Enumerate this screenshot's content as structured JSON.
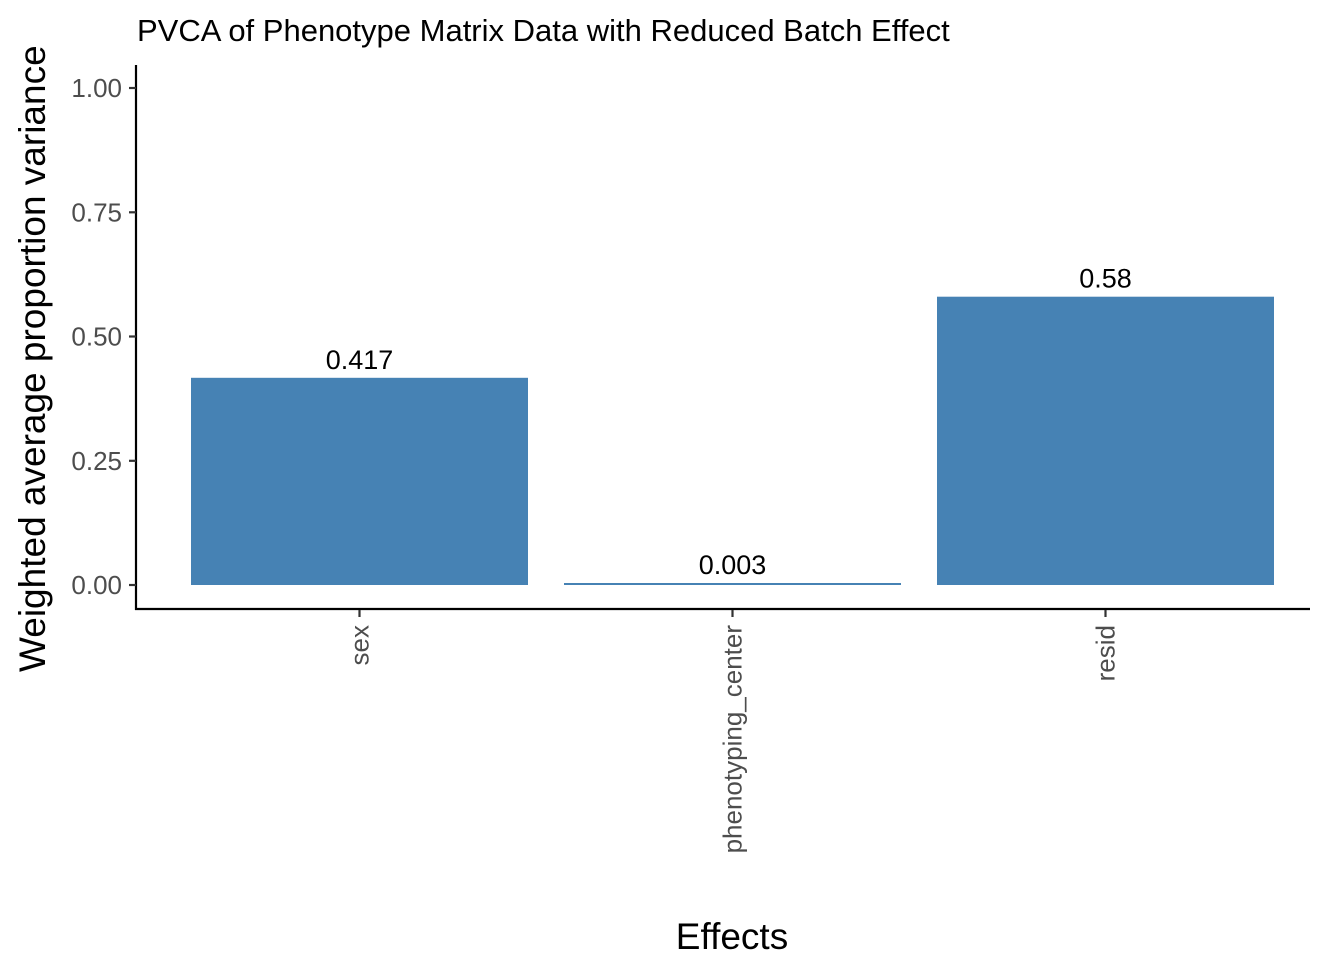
{
  "chart_data": {
    "type": "bar",
    "title": "PVCA of Phenotype Matrix Data with Reduced Batch Effect",
    "xlabel": "Effects",
    "ylabel": "Weighted average proportion variance",
    "categories": [
      "sex",
      "phenotyping_center",
      "resid"
    ],
    "values": [
      0.417,
      0.003,
      0.58
    ],
    "data_labels": [
      "0.417",
      "0.003",
      "0.58"
    ],
    "ylim": [
      0,
      1.0
    ],
    "yticks": [
      0,
      0.25,
      0.5,
      0.75,
      1.0
    ],
    "ytick_labels": [
      "0.00",
      "0.25",
      "0.50",
      "0.75",
      "1.00"
    ],
    "grid": false,
    "legend": "none",
    "bar_color": "#4682B4"
  }
}
